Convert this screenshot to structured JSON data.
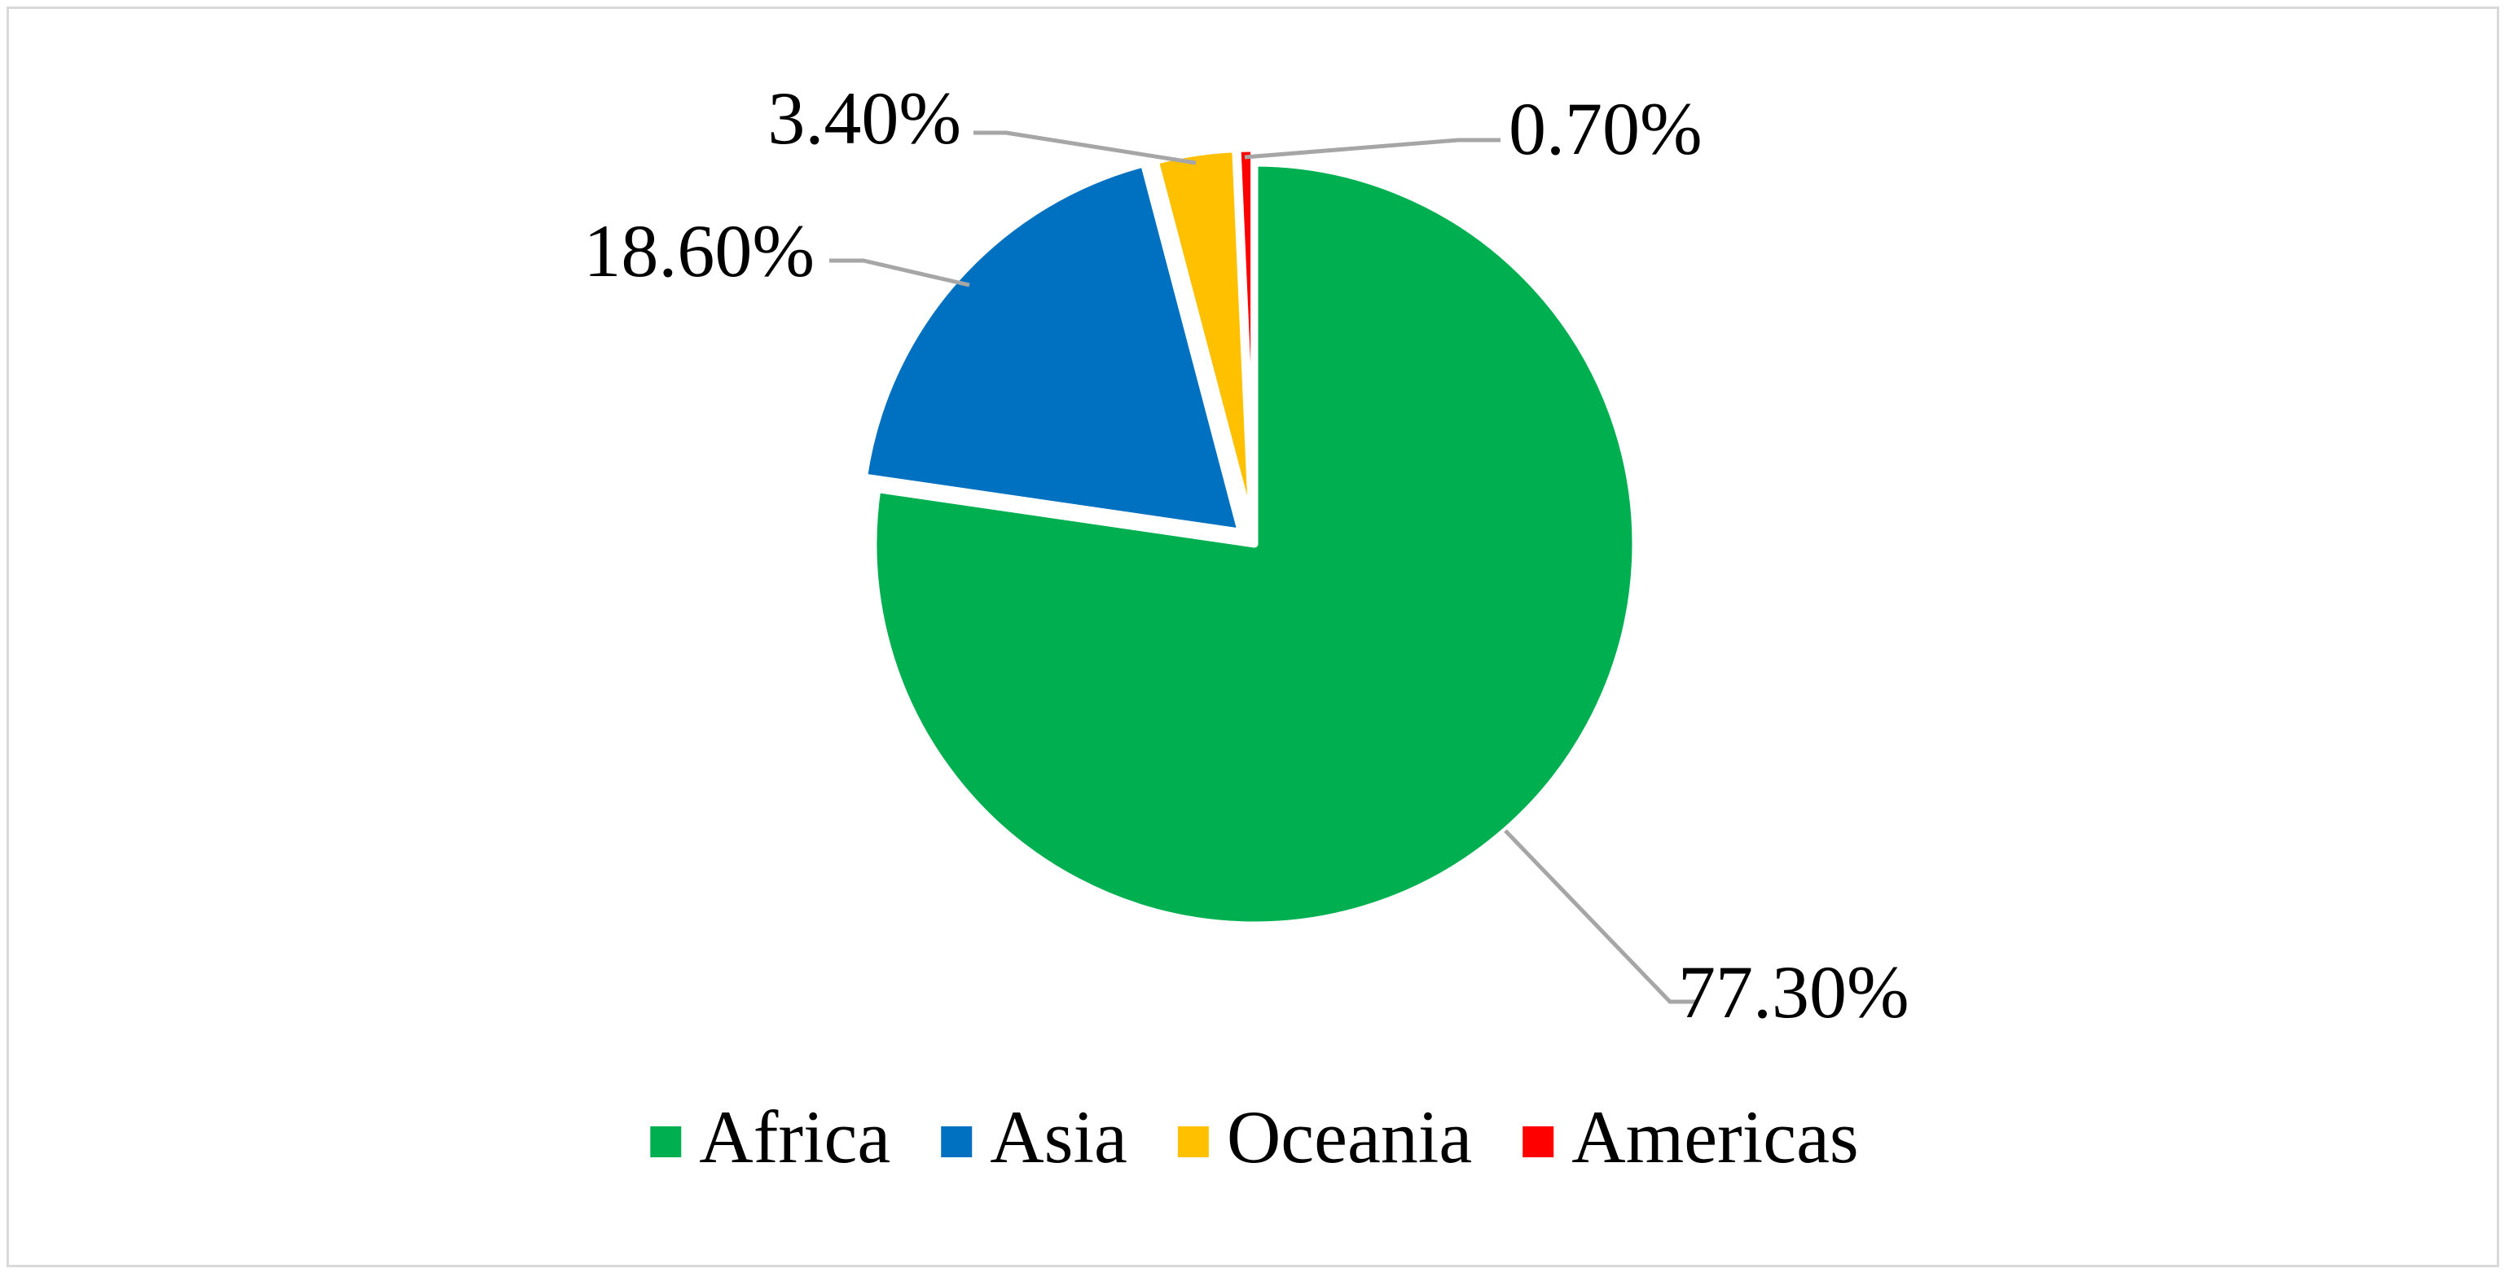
{
  "chart_data": {
    "type": "pie",
    "title": "",
    "legend_position": "bottom",
    "categories": [
      "Africa",
      "Asia",
      "Oceania",
      "Americas"
    ],
    "values": [
      77.3,
      18.6,
      3.4,
      0.7
    ],
    "data_labels": [
      "77.30%",
      "18.60%",
      "3.40%",
      "0.70%"
    ],
    "colors": [
      "#00b050",
      "#0070c0",
      "#ffc000",
      "#ff0000"
    ],
    "label_color": "#000000",
    "leader_line_color": "#a6a6a6",
    "border_color": "#d9d9d9"
  }
}
